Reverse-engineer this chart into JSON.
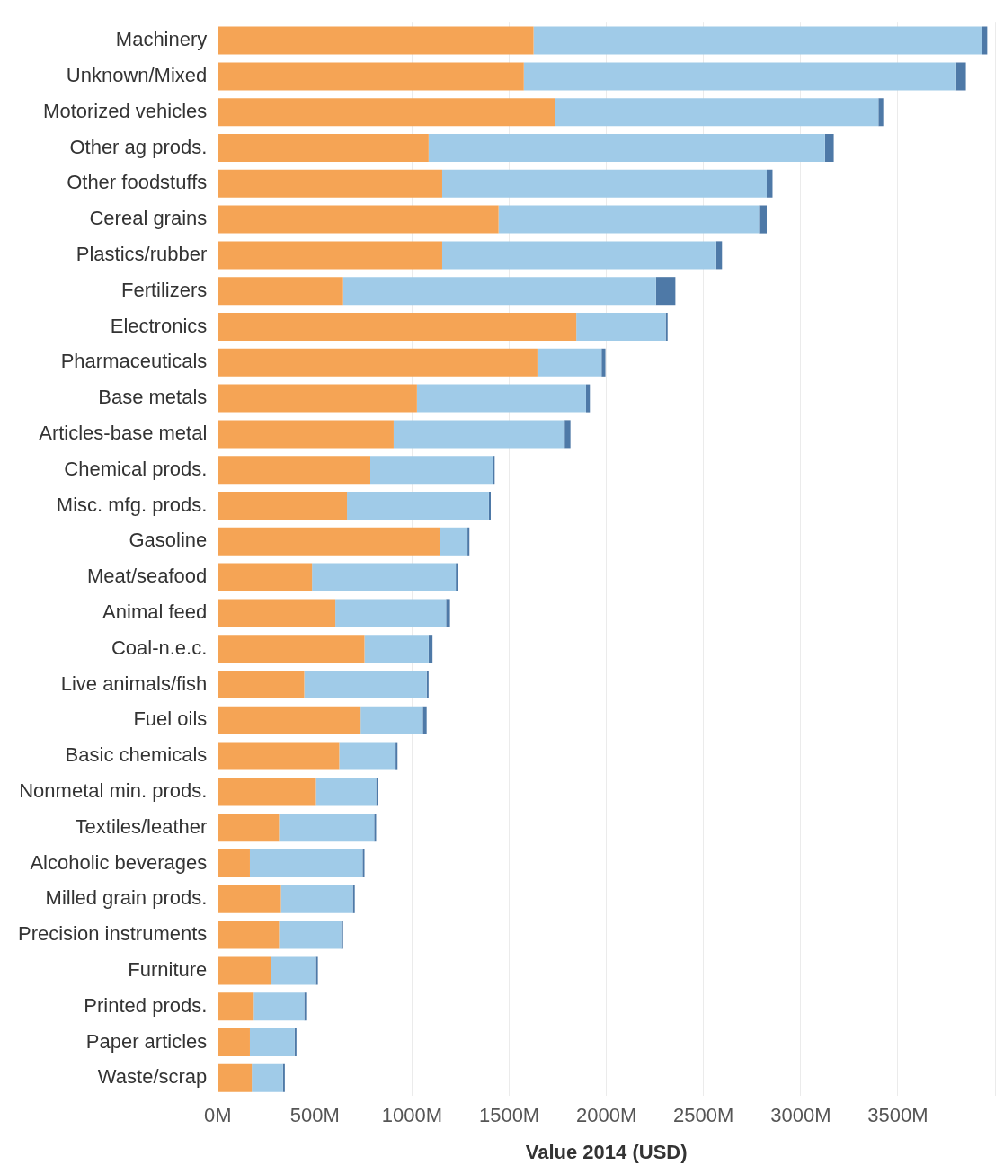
{
  "chart_data": {
    "type": "bar",
    "orientation": "horizontal",
    "stacked": true,
    "xlabel": "Value 2014 (USD)",
    "categories": [
      "Machinery",
      "Unknown/Mixed",
      "Motorized vehicles",
      "Other ag prods.",
      "Other foodstuffs",
      "Cereal grains",
      "Plastics/rubber",
      "Fertilizers",
      "Electronics",
      "Pharmaceuticals",
      "Base metals",
      "Articles-base metal",
      "Chemical prods.",
      "Misc. mfg. prods.",
      "Gasoline",
      "Meat/seafood",
      "Animal feed",
      "Coal-n.e.c.",
      "Live animals/fish",
      "Fuel oils",
      "Basic chemicals",
      "Nonmetal min. prods.",
      "Textiles/leather",
      "Alcoholic beverages",
      "Milled grain prods.",
      "Precision instruments",
      "Furniture",
      "Printed prods.",
      "Paper articles",
      "Waste/scrap"
    ],
    "series": [
      {
        "color": "#f5a455",
        "values": [
          1625,
          1575,
          1735,
          1085,
          1155,
          1445,
          1155,
          645,
          1845,
          1645,
          1025,
          905,
          785,
          665,
          1145,
          485,
          605,
          755,
          445,
          735,
          625,
          505,
          315,
          165,
          325,
          315,
          275,
          185,
          165,
          175
        ]
      },
      {
        "color": "#a0cbe8",
        "values": [
          2310,
          2225,
          1665,
          2040,
          1670,
          1340,
          1410,
          1610,
          460,
          330,
          870,
          880,
          630,
          730,
          140,
          740,
          570,
          330,
          630,
          320,
          290,
          310,
          490,
          580,
          370,
          320,
          230,
          260,
          230,
          160
        ]
      },
      {
        "color": "#4e79a7",
        "values": [
          25,
          50,
          25,
          45,
          30,
          40,
          30,
          100,
          10,
          20,
          20,
          30,
          10,
          10,
          10,
          10,
          20,
          20,
          10,
          20,
          10,
          10,
          10,
          10,
          10,
          10,
          10,
          10,
          10,
          10
        ]
      }
    ],
    "xlim": [
      0,
      4000
    ],
    "xticks": [
      {
        "value": 0,
        "label": "0M"
      },
      {
        "value": 500,
        "label": "500M"
      },
      {
        "value": 1000,
        "label": "1000M"
      },
      {
        "value": 1500,
        "label": "1500M"
      },
      {
        "value": 2000,
        "label": "2000M"
      },
      {
        "value": 2500,
        "label": "2500M"
      },
      {
        "value": 3000,
        "label": "3000M"
      },
      {
        "value": 3500,
        "label": "3500M"
      },
      {
        "value": 4000,
        "label": null
      }
    ],
    "grid": "x",
    "legend": false
  }
}
